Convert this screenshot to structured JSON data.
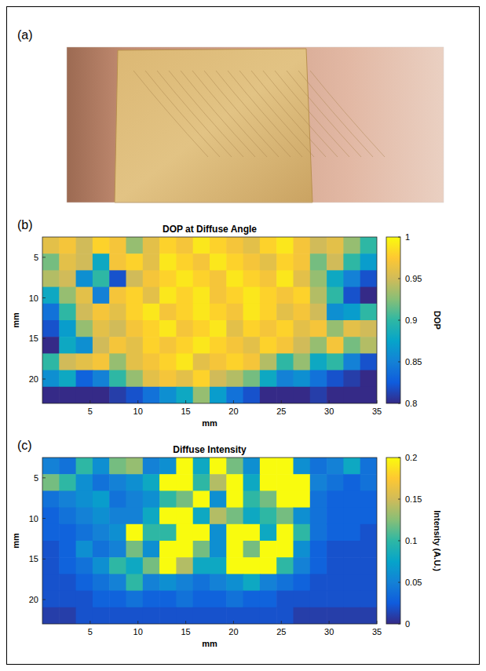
{
  "panel_a": {
    "label": "(a)"
  },
  "chart_data": [
    {
      "type": "heatmap",
      "panel_label": "(b)",
      "title": "DOP at Diffuse Angle",
      "x_label": "mm",
      "y_label": "mm",
      "xlim": [
        0,
        35
      ],
      "ylim": [
        2.5,
        23
      ],
      "xticks": [
        5,
        10,
        15,
        20,
        25,
        30,
        35
      ],
      "yticks": [
        5,
        10,
        15,
        20
      ],
      "x": [
        0.875,
        2.625,
        4.375,
        6.125,
        7.875,
        9.625,
        11.375,
        13.125,
        14.875,
        16.625,
        18.375,
        20.125,
        21.875,
        23.625,
        25.375,
        27.125,
        28.875,
        30.625,
        32.375,
        34.125
      ],
      "y": [
        3.525,
        5.575,
        7.625,
        9.675,
        11.725,
        13.775,
        15.825,
        17.875,
        19.925,
        21.975
      ],
      "cells": [
        [
          0.96,
          0.97,
          0.95,
          0.98,
          0.97,
          0.93,
          0.96,
          0.98,
          0.97,
          0.99,
          0.98,
          0.97,
          0.96,
          0.98,
          0.99,
          0.97,
          0.95,
          0.96,
          0.93,
          0.9
        ],
        [
          0.92,
          0.96,
          0.95,
          0.88,
          0.97,
          0.98,
          0.96,
          0.99,
          0.98,
          0.97,
          0.99,
          0.98,
          0.97,
          0.96,
          0.98,
          0.97,
          0.92,
          0.95,
          0.9,
          0.87
        ],
        [
          0.94,
          0.95,
          0.86,
          0.9,
          0.82,
          0.95,
          0.97,
          0.98,
          0.99,
          0.98,
          0.97,
          0.99,
          0.98,
          0.97,
          0.99,
          0.96,
          0.93,
          0.88,
          0.85,
          0.82
        ],
        [
          0.88,
          0.93,
          0.96,
          0.85,
          0.97,
          0.98,
          0.96,
          0.99,
          0.98,
          0.99,
          0.97,
          0.98,
          0.99,
          0.98,
          0.97,
          0.98,
          0.94,
          0.9,
          0.82,
          0.8
        ],
        [
          0.84,
          0.9,
          0.95,
          0.97,
          0.96,
          0.98,
          0.99,
          0.97,
          0.98,
          0.99,
          0.98,
          0.97,
          0.99,
          0.98,
          0.96,
          0.97,
          0.95,
          0.86,
          0.87,
          0.9
        ],
        [
          0.82,
          0.87,
          0.93,
          0.96,
          0.95,
          0.97,
          0.98,
          0.99,
          0.97,
          0.98,
          0.99,
          0.96,
          0.98,
          0.97,
          0.98,
          0.96,
          0.97,
          0.93,
          0.96,
          0.95
        ],
        [
          0.8,
          0.88,
          0.86,
          0.95,
          0.97,
          0.96,
          0.98,
          0.97,
          0.98,
          0.99,
          0.98,
          0.97,
          0.96,
          0.98,
          0.97,
          0.95,
          0.93,
          0.97,
          0.92,
          0.94
        ],
        [
          0.9,
          0.95,
          0.96,
          0.97,
          0.93,
          0.96,
          0.97,
          0.98,
          0.99,
          0.96,
          0.97,
          0.98,
          0.97,
          0.94,
          0.9,
          0.93,
          0.88,
          0.9,
          0.85,
          0.82
        ],
        [
          0.86,
          0.88,
          0.83,
          0.85,
          0.9,
          0.93,
          0.96,
          0.97,
          0.96,
          0.98,
          0.95,
          0.94,
          0.92,
          0.88,
          0.85,
          0.86,
          0.84,
          0.82,
          0.81,
          0.8
        ],
        [
          0.8,
          0.8,
          0.8,
          0.8,
          0.81,
          0.82,
          0.84,
          0.86,
          0.88,
          0.93,
          0.87,
          0.84,
          0.82,
          0.8,
          0.8,
          0.8,
          0.81,
          0.8,
          0.8,
          0.8
        ]
      ],
      "colorbar": {
        "label": "DOP",
        "range": [
          0.8,
          1
        ],
        "ticks": [
          0.8,
          0.85,
          0.9,
          0.95,
          1
        ]
      }
    },
    {
      "type": "heatmap",
      "panel_label": "(c)",
      "title": "Diffuse Intensity",
      "x_label": "mm",
      "y_label": "mm",
      "xlim": [
        0,
        35
      ],
      "ylim": [
        2.5,
        23
      ],
      "xticks": [
        5,
        10,
        15,
        20,
        25,
        30,
        35
      ],
      "yticks": [
        5,
        10,
        15,
        20
      ],
      "x": [
        0.875,
        2.625,
        4.375,
        6.125,
        7.875,
        9.625,
        11.375,
        13.125,
        14.875,
        16.625,
        18.375,
        20.125,
        21.875,
        23.625,
        25.375,
        27.125,
        28.875,
        30.625,
        32.375,
        34.125
      ],
      "y": [
        3.525,
        5.575,
        7.625,
        9.675,
        11.725,
        13.775,
        15.825,
        17.875,
        19.925,
        21.975
      ],
      "cells": [
        [
          0.05,
          0.04,
          0.1,
          0.06,
          0.12,
          0.13,
          0.05,
          0.06,
          0.2,
          0.08,
          0.2,
          0.12,
          0.06,
          0.2,
          0.2,
          0.06,
          0.04,
          0.05,
          0.08,
          0.04
        ],
        [
          0.12,
          0.1,
          0.06,
          0.04,
          0.05,
          0.06,
          0.08,
          0.2,
          0.2,
          0.1,
          0.14,
          0.2,
          0.08,
          0.2,
          0.2,
          0.2,
          0.05,
          0.04,
          0.03,
          0.04
        ],
        [
          0.04,
          0.05,
          0.06,
          0.07,
          0.04,
          0.05,
          0.06,
          0.1,
          0.12,
          0.2,
          0.06,
          0.2,
          0.1,
          0.12,
          0.2,
          0.2,
          0.04,
          0.03,
          0.03,
          0.03
        ],
        [
          0.03,
          0.04,
          0.05,
          0.06,
          0.05,
          0.05,
          0.08,
          0.2,
          0.2,
          0.08,
          0.14,
          0.12,
          0.08,
          0.1,
          0.12,
          0.06,
          0.04,
          0.03,
          0.03,
          0.03
        ],
        [
          0.03,
          0.03,
          0.04,
          0.05,
          0.06,
          0.2,
          0.1,
          0.1,
          0.2,
          0.2,
          0.06,
          0.2,
          0.2,
          0.08,
          0.2,
          0.1,
          0.04,
          0.03,
          0.03,
          0.02
        ],
        [
          0.02,
          0.03,
          0.06,
          0.04,
          0.05,
          0.12,
          0.06,
          0.2,
          0.2,
          0.12,
          0.06,
          0.2,
          0.12,
          0.2,
          0.2,
          0.06,
          0.03,
          0.02,
          0.02,
          0.02
        ],
        [
          0.02,
          0.03,
          0.04,
          0.06,
          0.1,
          0.08,
          0.12,
          0.2,
          0.14,
          0.08,
          0.08,
          0.2,
          0.2,
          0.2,
          0.1,
          0.05,
          0.03,
          0.02,
          0.02,
          0.02
        ],
        [
          0.02,
          0.02,
          0.03,
          0.04,
          0.05,
          0.1,
          0.05,
          0.06,
          0.05,
          0.04,
          0.05,
          0.06,
          0.08,
          0.05,
          0.04,
          0.03,
          0.02,
          0.02,
          0.02,
          0.02
        ],
        [
          0.02,
          0.02,
          0.02,
          0.03,
          0.03,
          0.04,
          0.03,
          0.03,
          0.04,
          0.03,
          0.03,
          0.04,
          0.03,
          0.03,
          0.02,
          0.02,
          0.02,
          0.02,
          0.02,
          0.02
        ],
        [
          0.01,
          0.01,
          0.02,
          0.02,
          0.02,
          0.02,
          0.02,
          0.02,
          0.02,
          0.02,
          0.02,
          0.02,
          0.02,
          0.02,
          0.02,
          0.01,
          0.01,
          0.01,
          0.01,
          0.01
        ]
      ],
      "colorbar": {
        "label": "Intensity (A.U.)",
        "range": [
          0,
          0.2
        ],
        "ticks": [
          0,
          0.05,
          0.1,
          0.15,
          0.2
        ]
      }
    }
  ]
}
